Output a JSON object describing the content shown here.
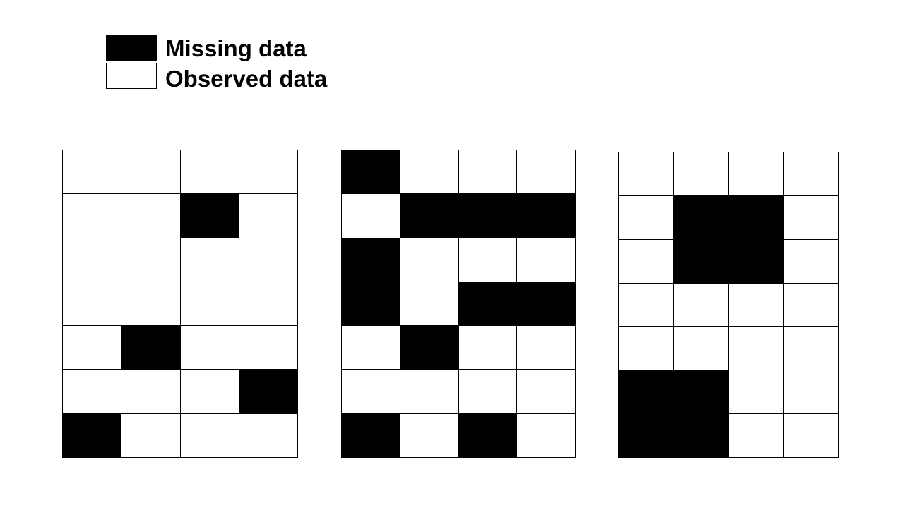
{
  "legend": {
    "missing": {
      "label": "Missing data",
      "color": "#000000"
    },
    "observed": {
      "label": "Observed data",
      "color": "#ffffff"
    }
  },
  "grids": [
    {
      "rows": 7,
      "cols": 4,
      "cells": [
        [
          0,
          0,
          0,
          0
        ],
        [
          0,
          0,
          1,
          0
        ],
        [
          0,
          0,
          0,
          0
        ],
        [
          0,
          0,
          0,
          0
        ],
        [
          0,
          1,
          0,
          0
        ],
        [
          0,
          0,
          0,
          1
        ],
        [
          1,
          0,
          0,
          0
        ]
      ]
    },
    {
      "rows": 7,
      "cols": 4,
      "cells": [
        [
          1,
          0,
          0,
          0
        ],
        [
          0,
          1,
          1,
          1
        ],
        [
          1,
          0,
          0,
          0
        ],
        [
          1,
          0,
          1,
          1
        ],
        [
          0,
          1,
          0,
          0
        ],
        [
          0,
          0,
          0,
          0
        ],
        [
          1,
          0,
          1,
          0
        ]
      ]
    },
    {
      "rows": 7,
      "cols": 4,
      "cells": [
        [
          0,
          0,
          0,
          0
        ],
        [
          0,
          1,
          1,
          0
        ],
        [
          0,
          1,
          1,
          0
        ],
        [
          0,
          0,
          0,
          0
        ],
        [
          0,
          0,
          0,
          0
        ],
        [
          1,
          1,
          0,
          0
        ],
        [
          1,
          1,
          0,
          0
        ]
      ]
    }
  ]
}
